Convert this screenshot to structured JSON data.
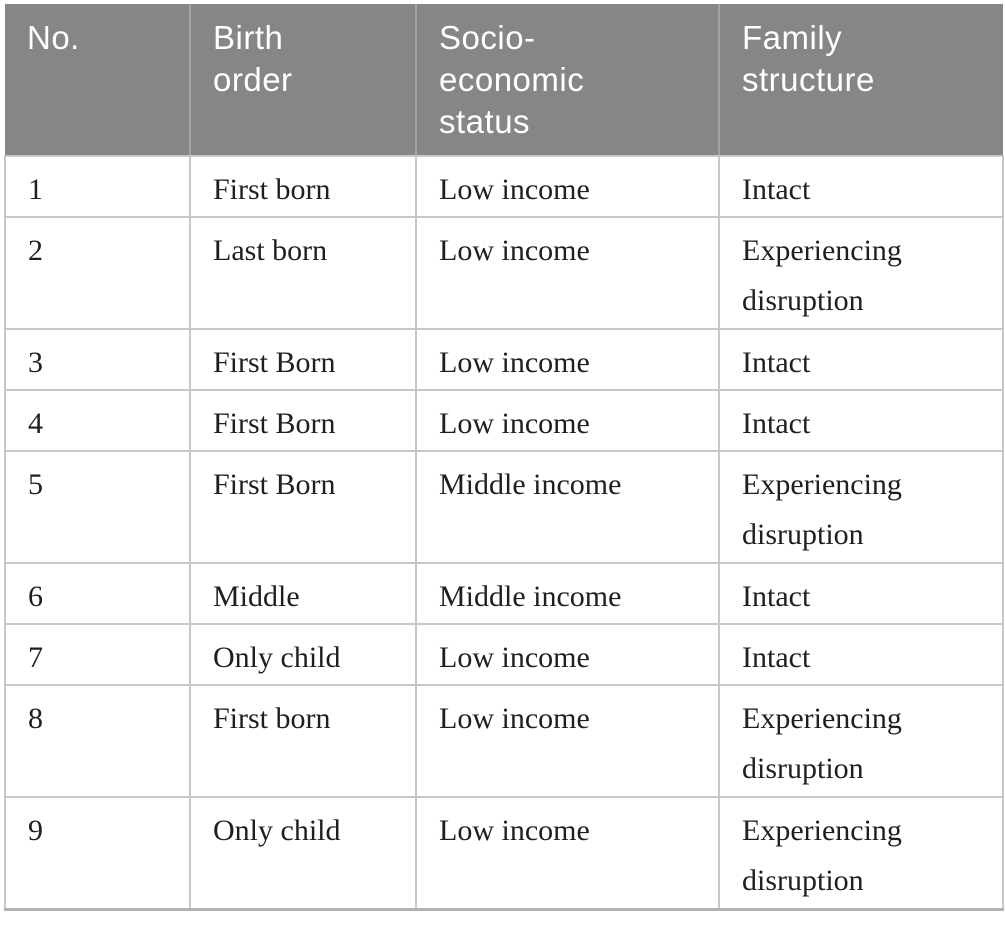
{
  "table": {
    "headers": {
      "no": "No.",
      "birth_order": "Birth order",
      "ses": "Socio-economic status",
      "family_structure": "Family structure"
    },
    "rows": [
      {
        "no": "1",
        "birth_order": "First born",
        "ses": "Low income",
        "family_structure": "Intact"
      },
      {
        "no": "2",
        "birth_order": "Last born",
        "ses": "Low income",
        "family_structure": "Experiencing disruption"
      },
      {
        "no": "3",
        "birth_order": "First Born",
        "ses": "Low income",
        "family_structure": "Intact"
      },
      {
        "no": "4",
        "birth_order": "First Born",
        "ses": "Low income",
        "family_structure": "Intact"
      },
      {
        "no": "5",
        "birth_order": "First Born",
        "ses": "Middle income",
        "family_structure": "Experiencing disruption"
      },
      {
        "no": "6",
        "birth_order": "Middle",
        "ses": "Middle income",
        "family_structure": "Intact"
      },
      {
        "no": "7",
        "birth_order": "Only child",
        "ses": "Low income",
        "family_structure": "Intact"
      },
      {
        "no": "8",
        "birth_order": "First born",
        "ses": "Low income",
        "family_structure": "Experiencing disruption"
      },
      {
        "no": "9",
        "birth_order": "Only child",
        "ses": "Low income",
        "family_structure": "Experiencing disruption"
      }
    ]
  },
  "colors": {
    "header_bg": "#868686",
    "header_text": "#ffffff",
    "header_divider": "#a3a3a3",
    "grid_line": "#c8c8c8",
    "bottom_rule": "#b2b2b2",
    "body_text": "#1f1f1f"
  }
}
